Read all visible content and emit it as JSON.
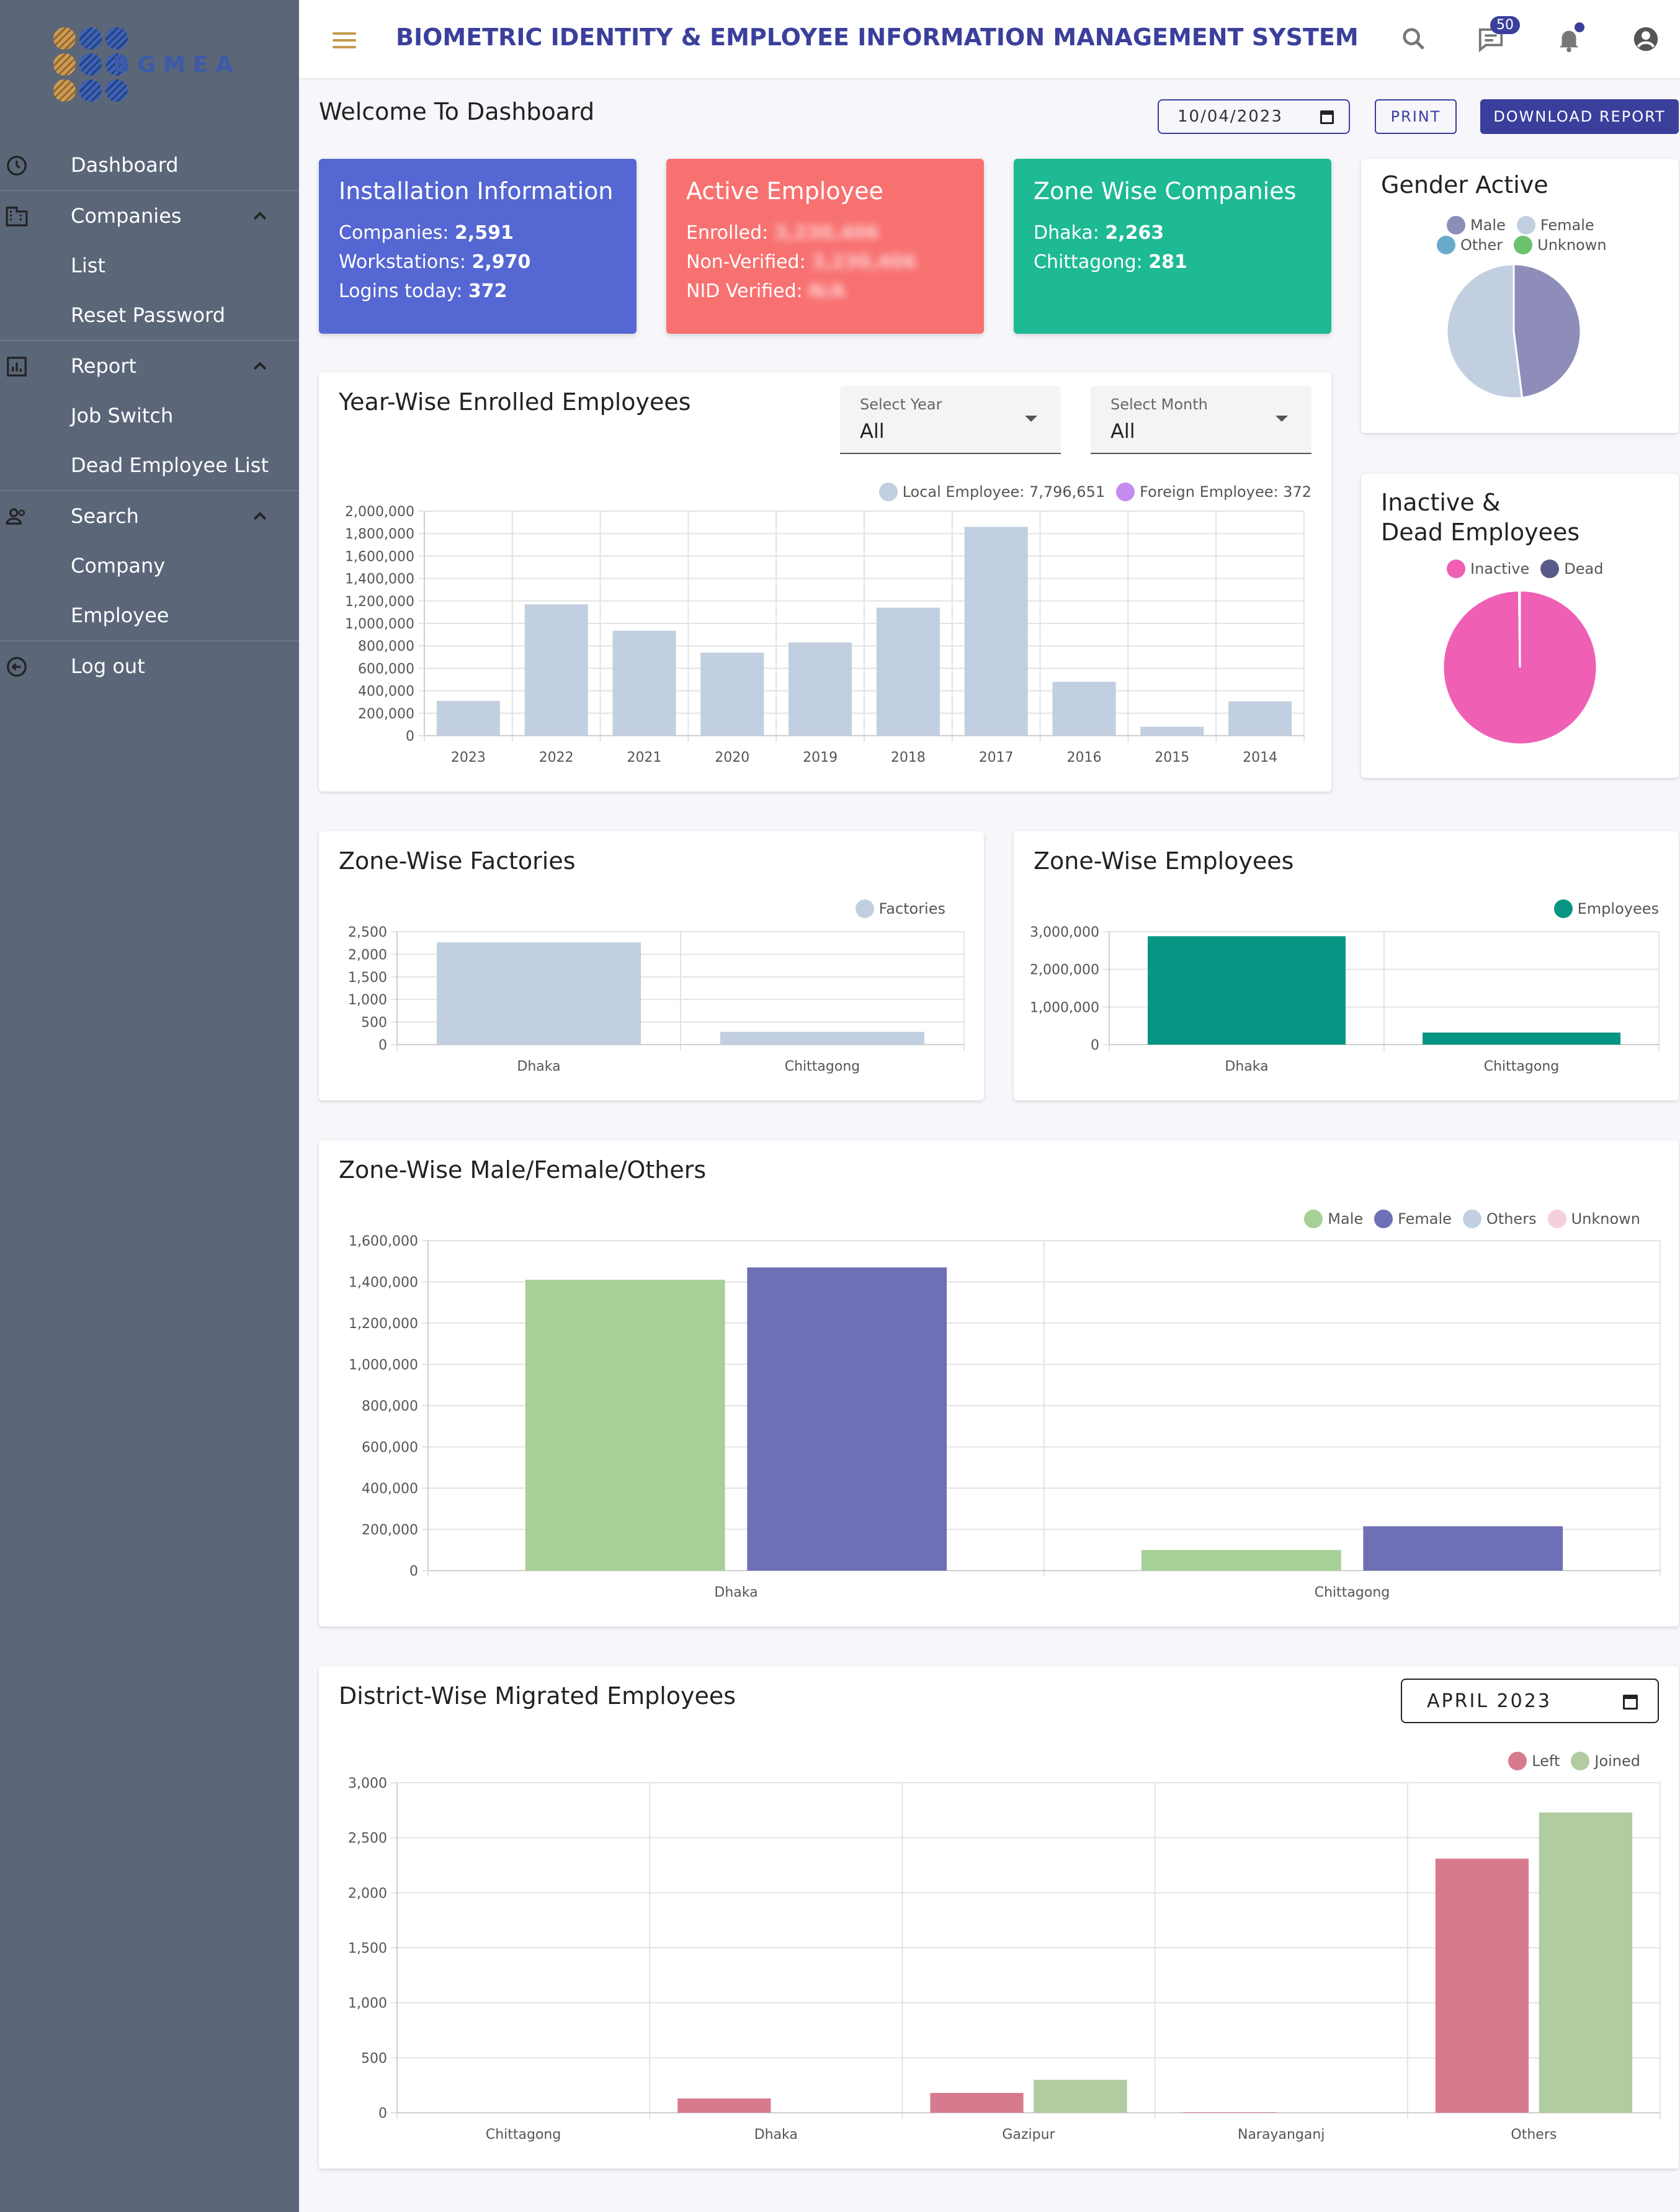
{
  "sidebar": {
    "brand": "BGMEA",
    "items": [
      {
        "label": "Dashboard",
        "icon": "clock-icon"
      },
      {
        "label": "Companies",
        "icon": "building-icon",
        "children": [
          "List",
          "Reset Password"
        ]
      },
      {
        "label": "Report",
        "icon": "bar-chart-icon",
        "children": [
          "Job Switch",
          "Dead Employee List"
        ]
      },
      {
        "label": "Search",
        "icon": "people-icon",
        "children": [
          "Company",
          "Employee"
        ]
      },
      {
        "label": "Log out",
        "icon": "logout-icon"
      }
    ]
  },
  "header": {
    "title": "BIOMETRIC IDENTITY & EMPLOYEE INFORMATION MANAGEMENT SYSTEM",
    "messages_badge": "50"
  },
  "toolbar": {
    "welcome": "Welcome To Dashboard",
    "date": "10/04/2023",
    "print_label": "PRINT",
    "download_label": "DOWNLOAD REPORT"
  },
  "cards": {
    "installation": {
      "title": "Installation Information",
      "rows": [
        {
          "label": "Companies: ",
          "value": "2,591"
        },
        {
          "label": "Workstations: ",
          "value": "2,970"
        },
        {
          "label": "Logins today: ",
          "value": "372"
        }
      ],
      "color": "#5567d2"
    },
    "active": {
      "title": "Active Employee",
      "rows": [
        {
          "label": "Enrolled: ",
          "value": "3,230,406"
        },
        {
          "label": "Non-Verified: ",
          "value": "3,230,406"
        },
        {
          "label": "NID Verified: ",
          "value": "N/A"
        }
      ],
      "color": "#f87171"
    },
    "zone": {
      "title": "Zone Wise Companies",
      "rows": [
        {
          "label": "Dhaka: ",
          "value": "2,263"
        },
        {
          "label": "Chittagong: ",
          "value": "281"
        }
      ],
      "color": "#1dba93"
    }
  },
  "gender_active": {
    "title": "Gender Active",
    "legend": [
      {
        "label": "Male",
        "color": "#8e8cb8"
      },
      {
        "label": "Female",
        "color": "#c2cfe0"
      },
      {
        "label": "Other",
        "color": "#6aaac9"
      },
      {
        "label": "Unknown",
        "color": "#6ac26e"
      }
    ],
    "chart_data": {
      "type": "pie",
      "labels": [
        "Male",
        "Female"
      ],
      "values": [
        48,
        52
      ]
    }
  },
  "inactive_dead": {
    "title_line1": "Inactive &",
    "title_line2": "Dead Employees",
    "legend": [
      {
        "label": "Inactive",
        "color": "#ef5fb4"
      },
      {
        "label": "Dead",
        "color": "#5a5a8a"
      }
    ],
    "chart_data": {
      "type": "pie",
      "labels": [
        "Inactive",
        "Dead"
      ],
      "values": [
        99.8,
        0.2
      ]
    }
  },
  "year_wise": {
    "title": "Year-Wise Enrolled Employees",
    "select_year": {
      "label": "Select Year",
      "value": "All"
    },
    "select_month": {
      "label": "Select Month",
      "value": "All"
    },
    "legend": [
      {
        "label": "Local Employee: 7,796,651",
        "color": "#c2cfe0"
      },
      {
        "label": "Foreign Employee: 372",
        "color": "#c68bf0"
      }
    ],
    "chart_data": {
      "type": "bar",
      "categories": [
        "2023",
        "2022",
        "2021",
        "2020",
        "2019",
        "2018",
        "2017",
        "2016",
        "2015",
        "2014"
      ],
      "series": [
        {
          "name": "Local Employee",
          "values": [
            310000,
            1170000,
            935000,
            740000,
            830000,
            1140000,
            1860000,
            480000,
            80000,
            305000
          ],
          "color": "#c2cfe0"
        },
        {
          "name": "Foreign Employee",
          "values": [
            0,
            0,
            0,
            0,
            0,
            0,
            0,
            0,
            0,
            0
          ],
          "color": "#c68bf0"
        }
      ],
      "ylim": [
        0,
        2000000
      ],
      "yticks": [
        "0",
        "200,000",
        "400,000",
        "600,000",
        "800,000",
        "1,000,000",
        "1,200,000",
        "1,400,000",
        "1,600,000",
        "1,800,000",
        "2,000,000"
      ]
    }
  },
  "zone_factories": {
    "title": "Zone-Wise Factories",
    "legend": [
      {
        "label": "Factories",
        "color": "#c2cfe0"
      }
    ],
    "chart_data": {
      "type": "bar",
      "categories": [
        "Dhaka",
        "Chittagong"
      ],
      "series": [
        {
          "name": "Factories",
          "values": [
            2263,
            281
          ],
          "color": "#c2cfe0"
        }
      ],
      "ylim": [
        0,
        2500
      ],
      "yticks": [
        "0",
        "500",
        "1,000",
        "1,500",
        "2,000",
        "2,500"
      ]
    }
  },
  "zone_employees": {
    "title": "Zone-Wise Employees",
    "legend": [
      {
        "label": "Employees",
        "color": "#069582"
      }
    ],
    "chart_data": {
      "type": "bar",
      "categories": [
        "Dhaka",
        "Chittagong"
      ],
      "series": [
        {
          "name": "Employees",
          "values": [
            2880000,
            320000
          ],
          "color": "#069582"
        }
      ],
      "ylim": [
        0,
        3000000
      ],
      "yticks": [
        "0",
        "1,000,000",
        "2,000,000",
        "3,000,000"
      ]
    }
  },
  "zone_gender": {
    "title": "Zone-Wise Male/Female/Others",
    "legend": [
      {
        "label": "Male",
        "color": "#a6d096"
      },
      {
        "label": "Female",
        "color": "#6e6fb4"
      },
      {
        "label": "Others",
        "color": "#c2cfe0"
      },
      {
        "label": "Unknown",
        "color": "#f5d0dc"
      }
    ],
    "chart_data": {
      "type": "bar",
      "categories": [
        "Dhaka",
        "Chittagong"
      ],
      "series": [
        {
          "name": "Male",
          "values": [
            1410000,
            100000
          ],
          "color": "#a6d096"
        },
        {
          "name": "Female",
          "values": [
            1470000,
            215000
          ],
          "color": "#6e6fb4"
        },
        {
          "name": "Others",
          "values": [
            0,
            0
          ],
          "color": "#c2cfe0"
        },
        {
          "name": "Unknown",
          "values": [
            0,
            0
          ],
          "color": "#f5d0dc"
        }
      ],
      "ylim": [
        0,
        1600000
      ],
      "yticks": [
        "0",
        "200,000",
        "400,000",
        "600,000",
        "800,000",
        "1,000,000",
        "1,200,000",
        "1,400,000",
        "1,600,000"
      ]
    }
  },
  "district_migrated": {
    "title": "District-Wise Migrated Employees",
    "month": "APRIL 2023",
    "legend": [
      {
        "label": "Left",
        "color": "#d87a8e"
      },
      {
        "label": "Joined",
        "color": "#b1cca0"
      }
    ],
    "chart_data": {
      "type": "bar",
      "categories": [
        "Chittagong",
        "Dhaka",
        "Gazipur",
        "Narayanganj",
        "Others"
      ],
      "series": [
        {
          "name": "Left",
          "values": [
            0,
            130,
            180,
            5,
            2310
          ],
          "color": "#d87a8e"
        },
        {
          "name": "Joined",
          "values": [
            0,
            0,
            300,
            0,
            2730
          ],
          "color": "#b1cca0"
        }
      ],
      "ylim": [
        0,
        3000
      ],
      "yticks": [
        "0",
        "500",
        "1,000",
        "1,500",
        "2,000",
        "2,500",
        "3,000"
      ]
    }
  }
}
